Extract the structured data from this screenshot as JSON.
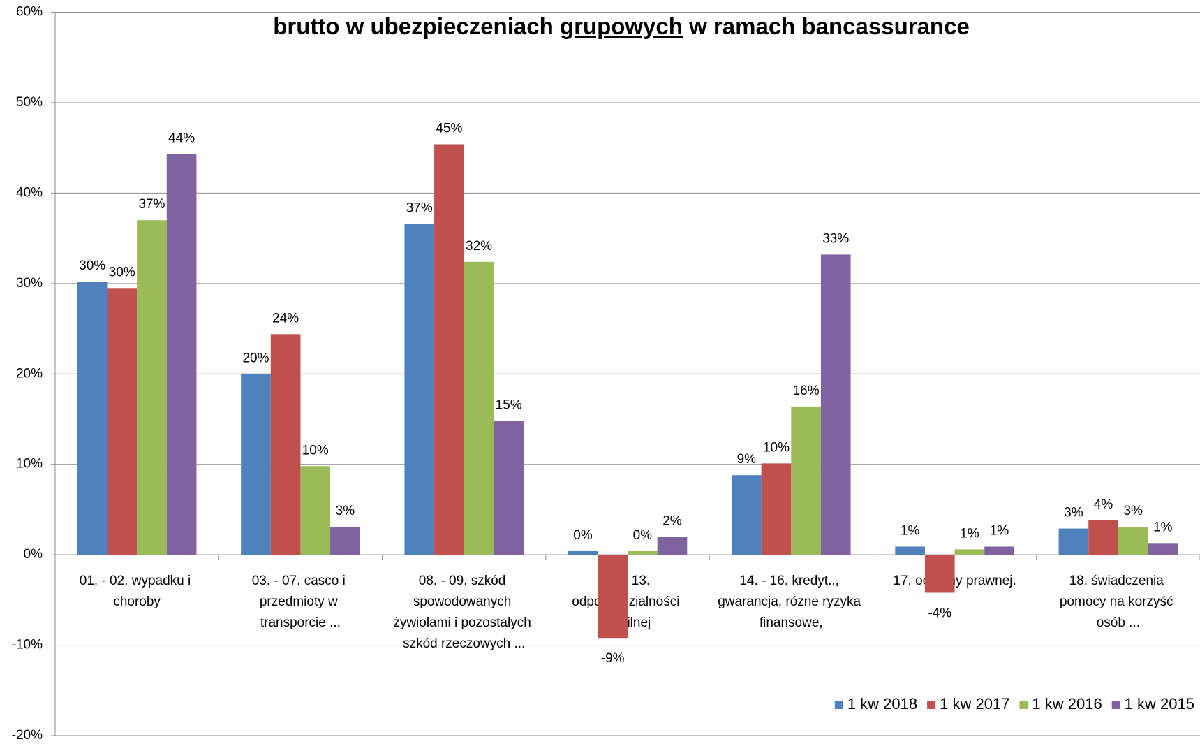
{
  "chart_data": {
    "type": "bar",
    "title": [
      "brutto w ubezpieczeniach",
      "grupowych",
      "w ramach bancassurance"
    ],
    "categories": [
      "01. - 02. wypadku i choroby",
      "03. - 07. casco i przedmioty w transporcie ...",
      "08. - 09. szkód spowodowanych żywiołami i pozostałych szkód rzeczowych ...",
      "10. - 13. odpowiedzialności cywilnej",
      "14. - 16. kredyt.., gwarancja, rózne ryzyka finansowe,",
      "17. ochrony prawnej.",
      "18. świadczenia pomocy na korzyść osób ..."
    ],
    "series": [
      {
        "name": "1 kw 2018",
        "color": "#4f81bd",
        "values": [
          30.2,
          20,
          36.6,
          0.4,
          8.8,
          0.9,
          2.9
        ],
        "value_labels": [
          "30%",
          "20%",
          "37%",
          "0%",
          "9%",
          "1%",
          "3%"
        ]
      },
      {
        "name": "1 kw 2017",
        "color": "#c0504d",
        "values": [
          29.5,
          24.4,
          45.4,
          -9.2,
          10.1,
          -4.2,
          3.8
        ],
        "value_labels": [
          "30%",
          "24%",
          "45%",
          "-9%",
          "10%",
          "-4%",
          "4%"
        ]
      },
      {
        "name": "1 kw 2016",
        "color": "#9bbb59",
        "values": [
          37,
          9.8,
          32.4,
          0.4,
          16.4,
          0.6,
          3.1
        ],
        "value_labels": [
          "37%",
          "10%",
          "32%",
          "0%",
          "16%",
          "1%",
          "3%"
        ]
      },
      {
        "name": "1 kw 2015",
        "color": "#8064a2",
        "values": [
          44.3,
          3.1,
          14.8,
          2,
          33.2,
          0.9,
          1.3
        ],
        "value_labels": [
          "44%",
          "3%",
          "15%",
          "2%",
          "33%",
          "1%",
          "1%"
        ]
      }
    ],
    "ylim": [
      -20,
      60
    ],
    "yticks": [
      {
        "value": -20,
        "label": "-20%"
      },
      {
        "value": -10,
        "label": "-10%"
      },
      {
        "value": 0,
        "label": "0%"
      },
      {
        "value": 10,
        "label": "10%"
      },
      {
        "value": 20,
        "label": "20%"
      },
      {
        "value": 30,
        "label": "30%"
      },
      {
        "value": 40,
        "label": "40%"
      },
      {
        "value": 50,
        "label": "50%"
      },
      {
        "value": 60,
        "label": "60%"
      }
    ],
    "grid": true,
    "legend": "bottom-right"
  }
}
